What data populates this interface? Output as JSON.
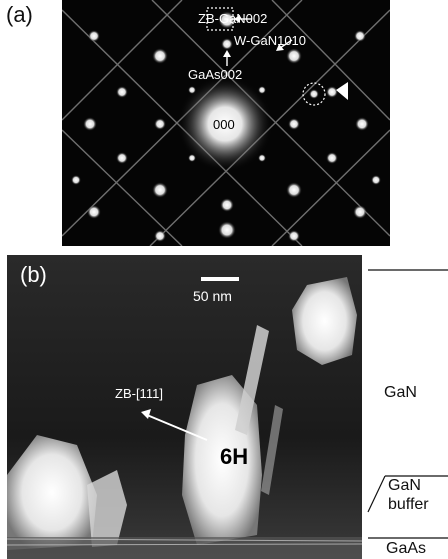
{
  "panel_a": {
    "label": "(a)",
    "labels": {
      "zb_gan": "ZB-GaN002",
      "w_gan": "W-GaN1010",
      "gaas": "GaAs002",
      "center": "000"
    }
  },
  "panel_b": {
    "label": "(b)",
    "scalebar": "50 nm",
    "zb_direction": "ZB-[111]",
    "polytype": "6H",
    "layers": {
      "gan": "GaN",
      "buffer_line1": "GaN",
      "buffer_line2": "buffer",
      "gaas": "GaAs"
    }
  }
}
